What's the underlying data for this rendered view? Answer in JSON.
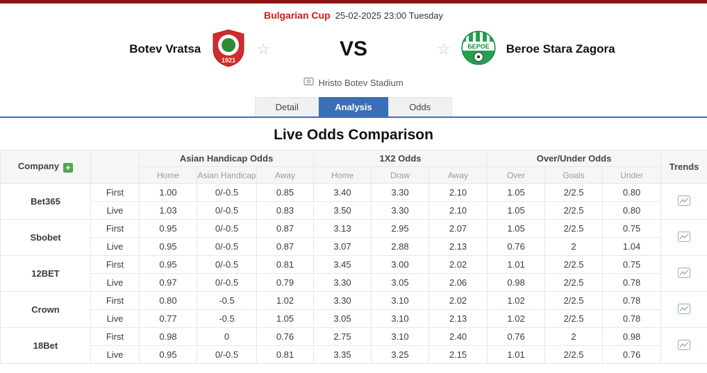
{
  "top": {
    "league": "Bulgarian Cup",
    "datetime": "25-02-2025 23:00 Tuesday"
  },
  "match": {
    "home_team": "Botev Vratsa",
    "away_team": "Beroe Stara Zagora",
    "vs_label": "VS",
    "stadium": "Hristo Botev Stadium",
    "home_logo_year": "1921",
    "away_logo_text": "БЕРОЕ"
  },
  "tabs": [
    {
      "label": "Detail",
      "active": false
    },
    {
      "label": "Analysis",
      "active": true
    },
    {
      "label": "Odds",
      "active": false
    }
  ],
  "section_title": "Live Odds Comparison",
  "colors": {
    "accent_blue": "#3b6fb5",
    "league_red": "#d01a1a",
    "asian_handicap_bg": "#e9f6e9",
    "x12_bg": "#fdfde3",
    "add_button_green": "#53a852",
    "top_bar_red": "#8b1414"
  },
  "odds_table": {
    "company_header": "Company",
    "trends_header": "Trends",
    "groups": [
      {
        "label": "Asian Handicap Odds",
        "columns": [
          "Home",
          "Asian Handicap",
          "Away"
        ]
      },
      {
        "label": "1X2 Odds",
        "columns": [
          "Home",
          "Draw",
          "Away"
        ]
      },
      {
        "label": "Over/Under Odds",
        "columns": [
          "Over",
          "Goals",
          "Under"
        ]
      }
    ],
    "row_types": [
      "First",
      "Live"
    ],
    "companies": [
      {
        "name": "Bet365",
        "first": {
          "ah": [
            "1.00",
            "0/-0.5",
            "0.85"
          ],
          "x12": [
            "3.40",
            "3.30",
            "2.10"
          ],
          "ou": [
            "1.05",
            "2/2.5",
            "0.80"
          ]
        },
        "live": {
          "ah": [
            "1.03",
            "0/-0.5",
            "0.83"
          ],
          "x12": [
            "3.50",
            "3.30",
            "2.10"
          ],
          "ou": [
            "1.05",
            "2/2.5",
            "0.80"
          ]
        }
      },
      {
        "name": "Sbobet",
        "first": {
          "ah": [
            "0.95",
            "0/-0.5",
            "0.87"
          ],
          "x12": [
            "3.13",
            "2.95",
            "2.07"
          ],
          "ou": [
            "1.05",
            "2/2.5",
            "0.75"
          ]
        },
        "live": {
          "ah": [
            "0.95",
            "0/-0.5",
            "0.87"
          ],
          "x12": [
            "3.07",
            "2.88",
            "2.13"
          ],
          "ou": [
            "0.76",
            "2",
            "1.04"
          ]
        }
      },
      {
        "name": "12BET",
        "first": {
          "ah": [
            "0.95",
            "0/-0.5",
            "0.81"
          ],
          "x12": [
            "3.45",
            "3.00",
            "2.02"
          ],
          "ou": [
            "1.01",
            "2/2.5",
            "0.75"
          ]
        },
        "live": {
          "ah": [
            "0.97",
            "0/-0.5",
            "0.79"
          ],
          "x12": [
            "3.30",
            "3.05",
            "2.06"
          ],
          "ou": [
            "0.98",
            "2/2.5",
            "0.78"
          ]
        }
      },
      {
        "name": "Crown",
        "first": {
          "ah": [
            "0.80",
            "-0.5",
            "1.02"
          ],
          "x12": [
            "3.30",
            "3.10",
            "2.02"
          ],
          "ou": [
            "1.02",
            "2/2.5",
            "0.78"
          ]
        },
        "live": {
          "ah": [
            "0.77",
            "-0.5",
            "1.05"
          ],
          "x12": [
            "3.05",
            "3.10",
            "2.13"
          ],
          "ou": [
            "1.02",
            "2/2.5",
            "0.78"
          ]
        }
      },
      {
        "name": "18Bet",
        "first": {
          "ah": [
            "0.98",
            "0",
            "0.76"
          ],
          "x12": [
            "2.75",
            "3.10",
            "2.40"
          ],
          "ou": [
            "0.76",
            "2",
            "0.98"
          ]
        },
        "live": {
          "ah": [
            "0.95",
            "0/-0.5",
            "0.81"
          ],
          "x12": [
            "3.35",
            "3.25",
            "2.15"
          ],
          "ou": [
            "1.01",
            "2/2.5",
            "0.76"
          ]
        }
      }
    ]
  }
}
